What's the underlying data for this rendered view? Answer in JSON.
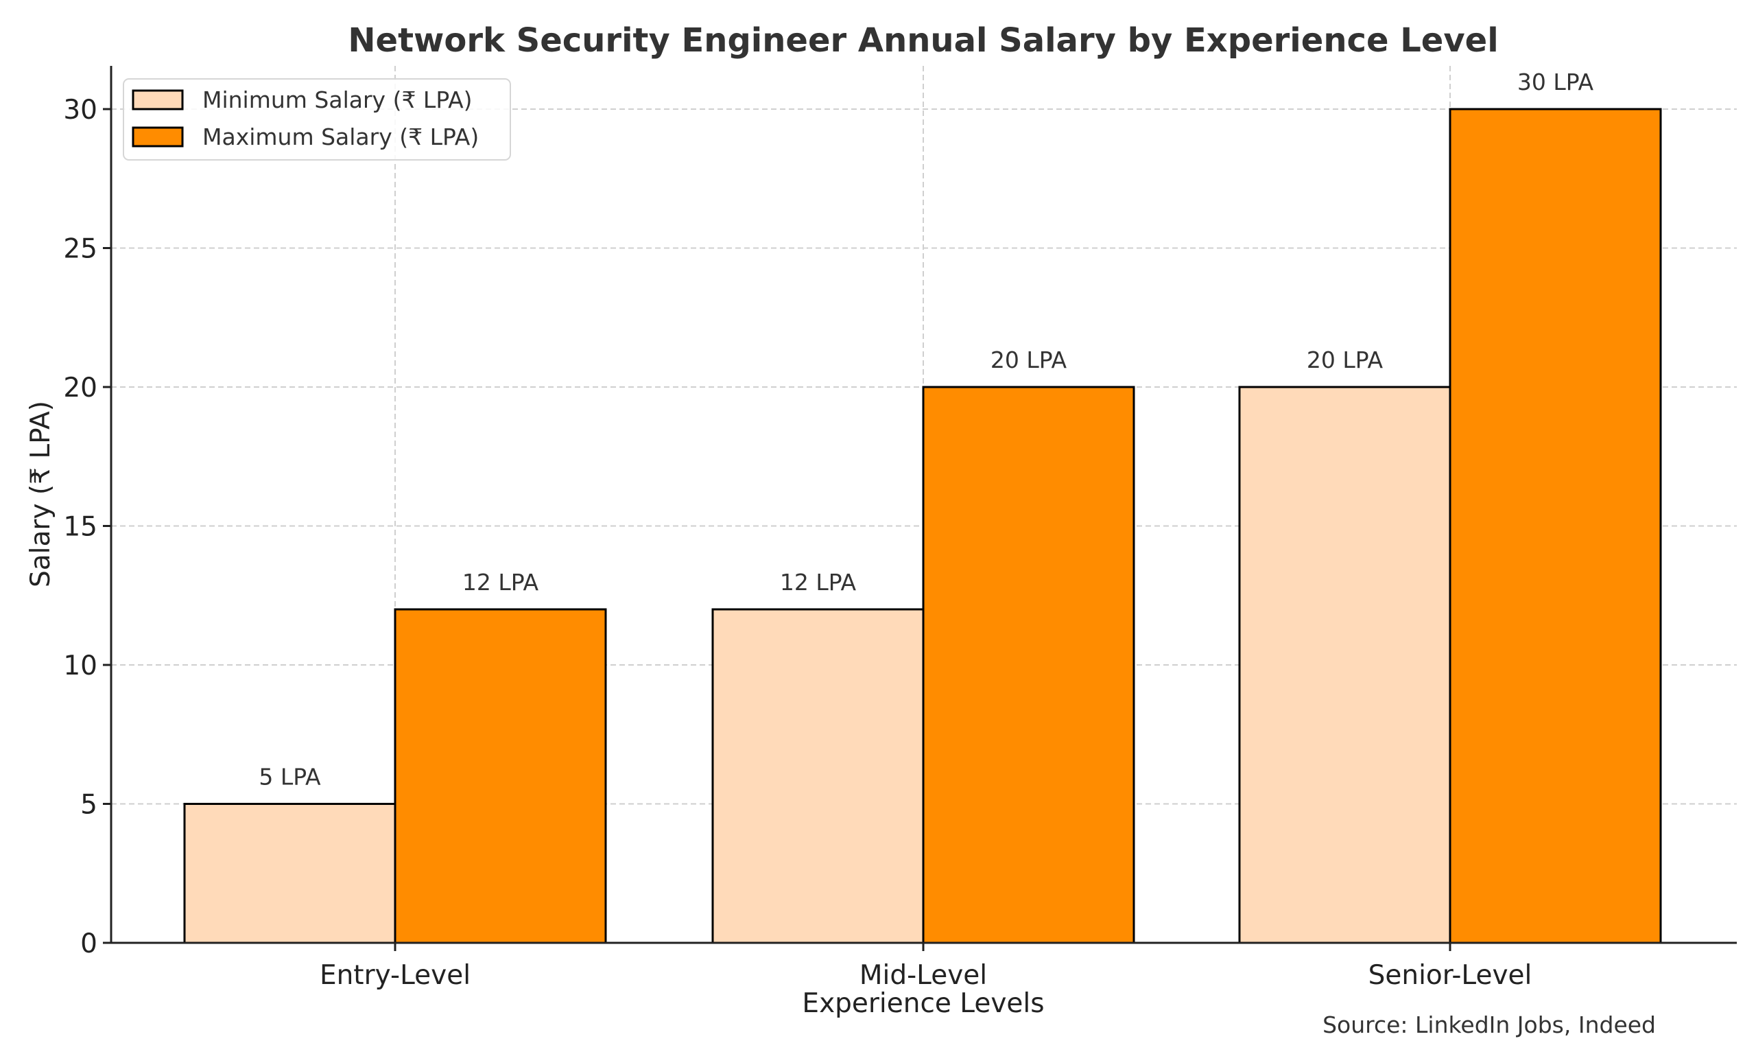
{
  "chart_data": {
    "type": "bar",
    "title": "Network Security Engineer Annual Salary by Experience Level",
    "xlabel": "Experience Levels",
    "ylabel": "Salary (₹ LPA)",
    "categories": [
      "Entry-Level",
      "Mid-Level",
      "Senior-Level"
    ],
    "series": [
      {
        "name": "Minimum Salary (₹ LPA)",
        "color": "#FFDAB9",
        "values": [
          5,
          12,
          20
        ],
        "labels": [
          "5 LPA",
          "12 LPA",
          "20 LPA"
        ]
      },
      {
        "name": "Maximum Salary (₹ LPA)",
        "color": "#FF8C00",
        "values": [
          12,
          20,
          30
        ],
        "labels": [
          "12 LPA",
          "20 LPA",
          "30 LPA"
        ]
      }
    ],
    "ylim": [
      0,
      31.5
    ],
    "yticks": [
      0,
      5,
      10,
      15,
      20,
      25,
      30
    ],
    "grid": true,
    "legend": "top-left",
    "annotation": "Source: LinkedIn Jobs, Indeed"
  }
}
